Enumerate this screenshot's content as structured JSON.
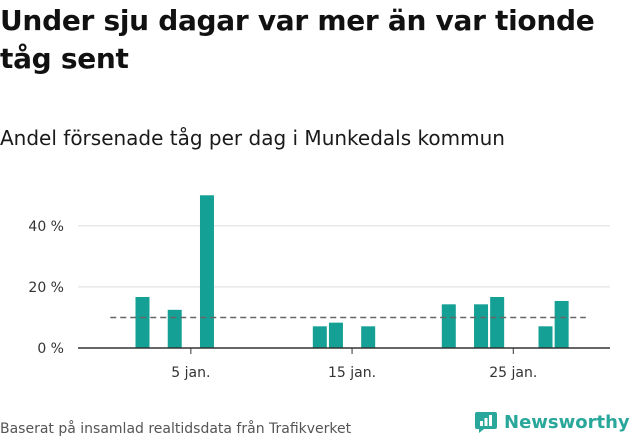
{
  "title": "Under sju dagar var mer än var tionde tåg sent",
  "subtitle": "Andel försenade tåg per dag i Munkedals kommun",
  "source": "Baserat på insamlad realtidsdata från Trafikverket",
  "brand": "Newsworthy",
  "colors": {
    "bar": "#15a095",
    "reference_line": "#666666",
    "grid": "#dddddd",
    "brand": "#2aa79b"
  },
  "icons": {
    "brand": "newsworthy-logo-icon"
  },
  "chart_data": {
    "type": "bar",
    "title": "",
    "x_unit": "day of January",
    "x": [
      2,
      4,
      6,
      13,
      14,
      16,
      21,
      23,
      24,
      27,
      28
    ],
    "values": [
      16.7,
      12.5,
      50.0,
      7.1,
      8.3,
      7.1,
      14.3,
      14.3,
      16.7,
      7.1,
      15.4
    ],
    "reference_line": 10,
    "reference_line_style": "dashed",
    "xlim": [
      -2,
      31
    ],
    "ylim": [
      0,
      55
    ],
    "y_ticks": [
      0,
      20,
      40
    ],
    "y_tick_labels": [
      "0 %",
      "20 %",
      "40 %"
    ],
    "x_ticks": [
      5,
      15,
      25
    ],
    "x_tick_labels": [
      "5 jan.",
      "15 jan.",
      "25 jan."
    ],
    "grid": true,
    "legend": "none"
  }
}
